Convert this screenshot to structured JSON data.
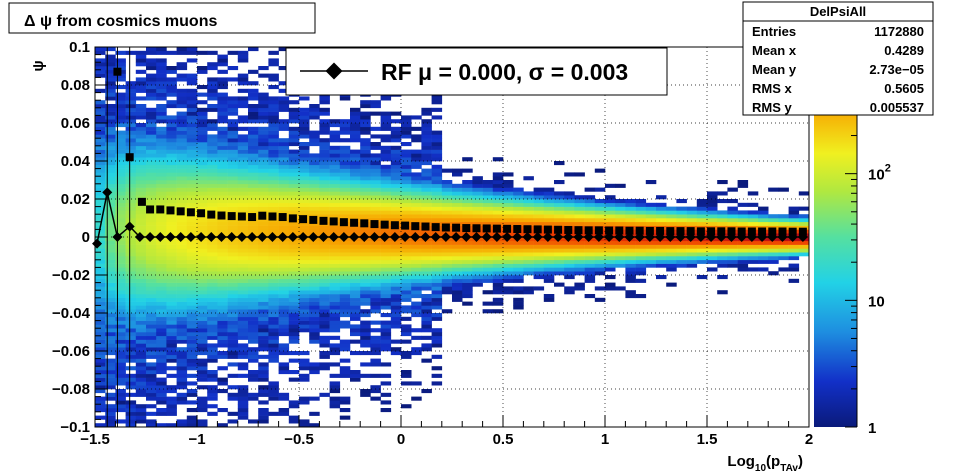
{
  "chart_data": {
    "type": "heatmap",
    "title": "Δ ψ from cosmics muons",
    "xlabel": "Log10(pTAv)",
    "xlabel_parts": {
      "base": "Log",
      "sub1": "10",
      "paren_open": "(p",
      "sub2": "TAv",
      "paren_close": ")"
    },
    "ylabel": "ψ",
    "xlim": [
      -1.5,
      2
    ],
    "ylim": [
      -0.1,
      0.1
    ],
    "x_ticks": [
      {
        "value": -1.5,
        "label": "−1.5"
      },
      {
        "value": -1,
        "label": "−1"
      },
      {
        "value": -0.5,
        "label": "−0.5"
      },
      {
        "value": 0,
        "label": "0"
      },
      {
        "value": 0.5,
        "label": "0.5"
      },
      {
        "value": 1,
        "label": "1"
      },
      {
        "value": 1.5,
        "label": "1.5"
      },
      {
        "value": 2,
        "label": "2"
      }
    ],
    "y_ticks": [
      {
        "value": 0.1,
        "label": "0.1"
      },
      {
        "value": 0.08,
        "label": "0.08"
      },
      {
        "value": 0.06,
        "label": "0.06"
      },
      {
        "value": 0.04,
        "label": "0.04"
      },
      {
        "value": 0.02,
        "label": "0.02"
      },
      {
        "value": 0,
        "label": "0"
      },
      {
        "value": -0.02,
        "label": "−0.02"
      },
      {
        "value": -0.04,
        "label": "−0.04"
      },
      {
        "value": -0.06,
        "label": "−0.06"
      },
      {
        "value": -0.08,
        "label": "−0.08"
      },
      {
        "value": -0.1,
        "label": "−0.1"
      }
    ],
    "grid": true,
    "colorbar": {
      "scale": "log",
      "range": [
        1,
        1000
      ],
      "ticks": [
        {
          "value": 1,
          "label": "1"
        },
        {
          "value": 10,
          "label": "10"
        },
        {
          "value": 100,
          "label": "10",
          "exponent": "2"
        }
      ]
    },
    "stats_box": {
      "title": "DelPsiAll",
      "rows": [
        {
          "label": "Entries",
          "value": "1172880"
        },
        {
          "label": "Mean x",
          "value": "0.4289"
        },
        {
          "label": "Mean y",
          "value": "2.73e−05"
        },
        {
          "label": "RMS x",
          "value": "0.5605"
        },
        {
          "label": "RMS y",
          "value": "0.005537"
        }
      ]
    },
    "legend": {
      "placement": "top-center",
      "entry": "RF μ =  0.000, σ =   0.003"
    },
    "density_model": {
      "x_bins": 70,
      "y_bins": 100,
      "peak_count": 1000,
      "core_sigma_at_x_min": 0.02,
      "core_sigma_at_x_max": 0.003,
      "mean_offset_at_x_min": 0.012,
      "mean_offset_at_x_max": 0.0
    },
    "series": [
      {
        "name": "RMS",
        "marker": "square",
        "x": [
          -1.39,
          -1.33,
          -1.27,
          -1.23,
          -1.18,
          -1.13,
          -1.08,
          -1.03,
          -0.98,
          -0.93,
          -0.88,
          -0.83,
          -0.78,
          -0.73,
          -0.68,
          -0.63,
          -0.58,
          -0.53,
          -0.48,
          -0.43,
          -0.38,
          -0.33,
          -0.28,
          -0.23,
          -0.18,
          -0.13,
          -0.08,
          -0.03,
          0.02,
          0.07,
          0.12,
          0.17,
          0.22,
          0.27,
          0.32,
          0.37,
          0.42,
          0.47,
          0.52,
          0.57,
          0.62,
          0.67,
          0.72,
          0.77,
          0.82,
          0.87,
          0.92,
          0.97,
          1.02,
          1.07,
          1.12,
          1.17,
          1.22,
          1.27,
          1.32,
          1.37,
          1.42,
          1.47,
          1.52,
          1.57,
          1.62,
          1.67,
          1.72,
          1.77,
          1.82,
          1.87,
          1.92,
          1.97
        ],
        "y": [
          0.087,
          0.042,
          0.0185,
          0.0145,
          0.0145,
          0.014,
          0.0135,
          0.013,
          0.0125,
          0.0118,
          0.0113,
          0.011,
          0.0108,
          0.0105,
          0.0112,
          0.0108,
          0.0105,
          0.0098,
          0.0094,
          0.009,
          0.0085,
          0.0082,
          0.0078,
          0.0075,
          0.0072,
          0.0068,
          0.0065,
          0.0062,
          0.006,
          0.0057,
          0.0055,
          0.0052,
          0.005,
          0.0049,
          0.0047,
          0.0046,
          0.0045,
          0.0044,
          0.0043,
          0.0042,
          0.0041,
          0.004,
          0.0039,
          0.0038,
          0.0037,
          0.0036,
          0.0035,
          0.0035,
          0.0034,
          0.0034,
          0.0033,
          0.0033,
          0.0032,
          0.0032,
          0.0031,
          0.0031,
          0.0031,
          0.003,
          0.003,
          0.003,
          0.003,
          0.0029,
          0.0029,
          0.0029,
          0.0029,
          0.0029,
          0.0028,
          0.0028
        ]
      },
      {
        "name": "Mean",
        "marker": "diamond",
        "x": [
          -1.49,
          -1.44,
          -1.39,
          -1.33,
          -1.28,
          -1.23,
          -1.18,
          -1.13,
          -1.08,
          -1.03,
          -0.98,
          -0.93,
          -0.88,
          -0.83,
          -0.78,
          -0.73,
          -0.68,
          -0.63,
          -0.58,
          -0.53,
          -0.48,
          -0.43,
          -0.38,
          -0.33,
          -0.28,
          -0.23,
          -0.18,
          -0.13,
          -0.08,
          -0.03,
          0.02,
          0.07,
          0.12,
          0.17,
          0.22,
          0.27,
          0.32,
          0.37,
          0.42,
          0.47,
          0.52,
          0.57,
          0.62,
          0.67,
          0.72,
          0.77,
          0.82,
          0.87,
          0.92,
          0.97,
          1.02,
          1.07,
          1.12,
          1.17,
          1.22,
          1.27,
          1.32,
          1.37,
          1.42,
          1.47,
          1.52,
          1.57,
          1.62,
          1.67,
          1.72,
          1.77,
          1.82,
          1.87,
          1.92,
          1.97
        ],
        "y": [
          -0.0035,
          0.0235,
          0.0,
          0.0055,
          0.0,
          0.0,
          0.0,
          0.0,
          0.0,
          0.0,
          0.0,
          0.0,
          0.0,
          0.0,
          0.0,
          0.0,
          0.0,
          0.0,
          0.0,
          0.0,
          0.0,
          0.0,
          0.0,
          0.0,
          0.0,
          0.0,
          0.0,
          0.0,
          0.0,
          0.0,
          0.0,
          0.0,
          0.0,
          0.0,
          0.0,
          0.0,
          0.0,
          0.0,
          0.0,
          0.0,
          0.0,
          0.0,
          0.0,
          0.0,
          0.0,
          0.0,
          0.0,
          0.0,
          0.0,
          0.0,
          0.0,
          0.0,
          0.0,
          0.0,
          0.0,
          0.0,
          0.0,
          0.0,
          0.0,
          0.0,
          0.0,
          0.0,
          0.0,
          0.0,
          0.0,
          0.0,
          0.0,
          0.0,
          0.0,
          0.0
        ]
      }
    ]
  }
}
